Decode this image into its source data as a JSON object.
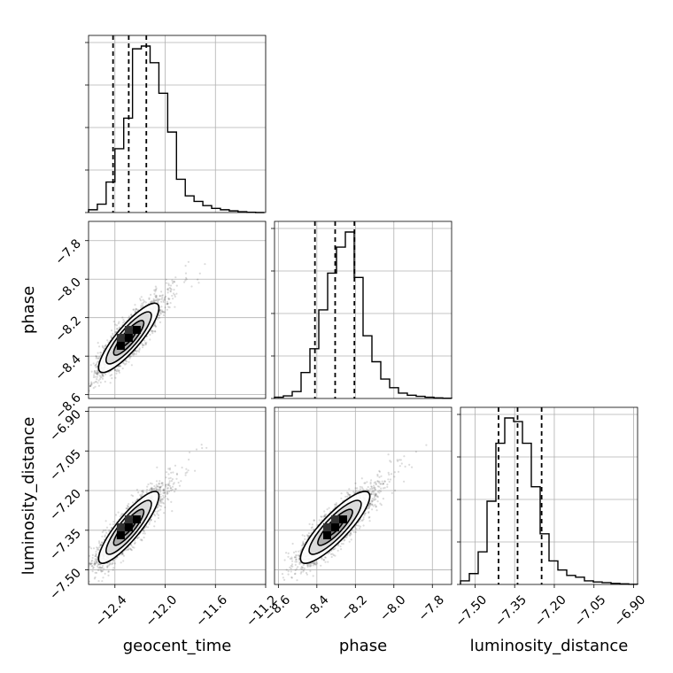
{
  "chart_data": {
    "type": "corner",
    "parameters": [
      "geocent_time",
      "phase",
      "luminosity_distance"
    ],
    "axis_labels": {
      "x": [
        "geocent_time",
        "phase",
        "luminosity_distance"
      ],
      "y": [
        "phase",
        "luminosity_distance"
      ]
    },
    "ranges": {
      "geocent_time": [
        -12.61,
        -11.2
      ],
      "phase": [
        -8.62,
        -7.7
      ],
      "luminosity_distance": [
        -7.555,
        -6.885
      ]
    },
    "ticks": {
      "geocent_time": [
        -12.4,
        -12.0,
        -11.6,
        -11.2
      ],
      "phase": [
        -8.6,
        -8.4,
        -8.2,
        -8.0,
        -7.8
      ],
      "luminosity_distance": [
        -7.5,
        -7.35,
        -7.2,
        -7.05,
        -6.9
      ]
    },
    "tick_labels": {
      "geocent_time": [
        "−12.4",
        "−12.0",
        "−11.6",
        "−11.2"
      ],
      "phase": [
        "−8.6",
        "−8.4",
        "−8.2",
        "−8.0",
        "−7.8"
      ],
      "luminosity_distance": [
        "−7.50",
        "−7.35",
        "−7.20",
        "−7.05",
        "−6.90"
      ]
    },
    "grid": true,
    "histograms": [
      {
        "parameter": "geocent_time",
        "bin_edges": [
          -12.61,
          -12.54,
          -12.47,
          -12.4,
          -12.33,
          -12.26,
          -12.19,
          -12.12,
          -12.05,
          -11.98,
          -11.91,
          -11.84,
          -11.77,
          -11.7,
          -11.63,
          -11.56,
          -11.49,
          -11.42,
          -11.35,
          -11.28,
          -11.21
        ],
        "counts": [
          1,
          3,
          11,
          23,
          34,
          59,
          60,
          54,
          43,
          29,
          12,
          6,
          4,
          2.5,
          1.5,
          1,
          0.6,
          0.3,
          0.1,
          0
        ],
        "quantiles": [
          -12.415,
          -12.29,
          -12.15
        ]
      },
      {
        "parameter": "phase",
        "bin_edges": [
          -8.62,
          -8.574,
          -8.528,
          -8.482,
          -8.436,
          -8.39,
          -8.344,
          -8.298,
          -8.252,
          -8.206,
          -8.16,
          -8.114,
          -8.068,
          -8.022,
          -7.976,
          -7.93,
          -7.884,
          -7.838,
          -7.792,
          -7.746,
          -7.7
        ],
        "counts": [
          0.6,
          1.2,
          3.2,
          12,
          23,
          41,
          58,
          70,
          77,
          56,
          29,
          17,
          9,
          5,
          2.5,
          1.5,
          1,
          0.6,
          0.3,
          0.1
        ],
        "quantiles": [
          -8.41,
          -8.305,
          -8.205
        ]
      },
      {
        "parameter": "luminosity_distance",
        "bin_edges": [
          -7.555,
          -7.5215,
          -7.488,
          -7.4545,
          -7.421,
          -7.3875,
          -7.354,
          -7.3205,
          -7.287,
          -7.2535,
          -7.22,
          -7.1865,
          -7.153,
          -7.1195,
          -7.086,
          -7.0525,
          -7.019,
          -6.9855,
          -6.952,
          -6.9185,
          -6.885
        ],
        "counts": [
          1,
          3,
          9,
          23,
          39,
          46,
          45,
          39,
          27,
          14,
          6.5,
          4,
          2.5,
          2,
          1,
          0.7,
          0.5,
          0.3,
          0.15,
          0.05
        ],
        "quantiles": [
          -7.411,
          -7.339,
          -7.248
        ]
      }
    ],
    "scatter_2d": [
      {
        "x_param": "geocent_time",
        "y_param": "phase",
        "mean": [
          -12.29,
          -8.305
        ],
        "sigma": [
          0.12,
          0.09
        ],
        "correlation": 0.86,
        "contour_levels_sigma": [
          0.5,
          1.0,
          1.5,
          2.0
        ]
      },
      {
        "x_param": "geocent_time",
        "y_param": "luminosity_distance",
        "mean": [
          -12.29,
          -7.339
        ],
        "sigma": [
          0.12,
          0.068
        ],
        "correlation": 0.87,
        "contour_levels_sigma": [
          0.5,
          1.0,
          1.5,
          2.0
        ]
      },
      {
        "x_param": "phase",
        "y_param": "luminosity_distance",
        "mean": [
          -8.305,
          -7.339
        ],
        "sigma": [
          0.09,
          0.068
        ],
        "correlation": 0.86,
        "contour_levels_sigma": [
          0.5,
          1.0,
          1.5,
          2.0
        ]
      }
    ]
  }
}
